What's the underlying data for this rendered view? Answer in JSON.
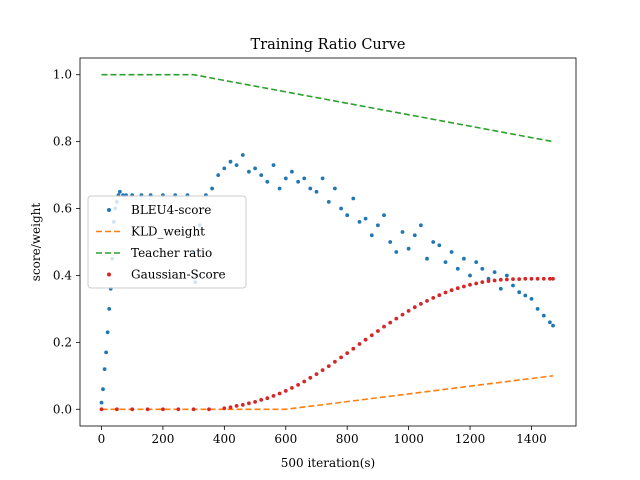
{
  "chart_data": {
    "type": "scatter",
    "title": "Training Ratio Curve",
    "xlabel": "500 iteration(s)",
    "ylabel": "score/weight",
    "xlim": [
      -70,
      1545
    ],
    "ylim": [
      -0.05,
      1.05
    ],
    "xticks": [
      0,
      200,
      400,
      600,
      800,
      1000,
      1200,
      1400
    ],
    "yticks": [
      0.0,
      0.2,
      0.4,
      0.6,
      0.8,
      1.0
    ],
    "xtick_labels": [
      "0",
      "200",
      "400",
      "600",
      "800",
      "1000",
      "1200",
      "1400"
    ],
    "ytick_labels": [
      "0.0",
      "0.2",
      "0.4",
      "0.6",
      "0.8",
      "1.0"
    ],
    "legend_position": "center-left",
    "grid": false,
    "series": [
      {
        "name": "BLEU4-score",
        "kind": "scatter",
        "color": "#1f77b4",
        "x": [
          0,
          5,
          10,
          15,
          20,
          25,
          30,
          35,
          40,
          45,
          50,
          55,
          60,
          70,
          80,
          100,
          130,
          160,
          200,
          240,
          280,
          300,
          305,
          310,
          320,
          340,
          360,
          380,
          400,
          420,
          440,
          460,
          480,
          500,
          520,
          540,
          560,
          580,
          600,
          620,
          640,
          660,
          680,
          700,
          720,
          740,
          760,
          780,
          800,
          820,
          840,
          860,
          880,
          900,
          920,
          940,
          960,
          980,
          1000,
          1020,
          1040,
          1060,
          1080,
          1100,
          1120,
          1140,
          1160,
          1180,
          1200,
          1220,
          1240,
          1260,
          1280,
          1300,
          1320,
          1340,
          1360,
          1380,
          1400,
          1420,
          1440,
          1460,
          1470
        ],
        "y": [
          0.02,
          0.06,
          0.12,
          0.17,
          0.23,
          0.3,
          0.36,
          0.45,
          0.56,
          0.6,
          0.62,
          0.64,
          0.65,
          0.64,
          0.64,
          0.64,
          0.64,
          0.64,
          0.64,
          0.64,
          0.64,
          0.47,
          0.38,
          0.4,
          0.55,
          0.64,
          0.66,
          0.7,
          0.72,
          0.74,
          0.73,
          0.76,
          0.71,
          0.72,
          0.7,
          0.68,
          0.73,
          0.66,
          0.69,
          0.71,
          0.68,
          0.69,
          0.66,
          0.65,
          0.69,
          0.62,
          0.66,
          0.6,
          0.58,
          0.63,
          0.56,
          0.57,
          0.52,
          0.55,
          0.58,
          0.5,
          0.47,
          0.53,
          0.48,
          0.52,
          0.55,
          0.45,
          0.5,
          0.49,
          0.44,
          0.47,
          0.42,
          0.45,
          0.4,
          0.44,
          0.42,
          0.39,
          0.41,
          0.36,
          0.4,
          0.37,
          0.35,
          0.34,
          0.33,
          0.3,
          0.28,
          0.26,
          0.25
        ]
      },
      {
        "name": "KLD_weight",
        "kind": "line",
        "style": "dashed",
        "color": "#ff7f0e",
        "x": [
          0,
          600,
          1470
        ],
        "y": [
          0.0,
          0.0,
          0.1
        ]
      },
      {
        "name": "Teacher ratio",
        "kind": "line",
        "style": "dashed",
        "color": "#2ca02c",
        "x": [
          0,
          300,
          1470
        ],
        "y": [
          1.0,
          1.0,
          0.8
        ]
      },
      {
        "name": "Gaussian-Score",
        "kind": "scatter",
        "color": "#d62728",
        "x": [
          0,
          50,
          100,
          150,
          200,
          250,
          300,
          350,
          400,
          420,
          440,
          460,
          480,
          500,
          520,
          540,
          560,
          580,
          600,
          620,
          640,
          660,
          680,
          700,
          720,
          740,
          760,
          780,
          800,
          820,
          840,
          860,
          880,
          900,
          920,
          940,
          960,
          980,
          1000,
          1020,
          1040,
          1060,
          1080,
          1100,
          1120,
          1140,
          1160,
          1180,
          1200,
          1220,
          1240,
          1260,
          1280,
          1300,
          1320,
          1340,
          1360,
          1380,
          1400,
          1420,
          1440,
          1460,
          1470
        ],
        "y": [
          0.0,
          0.0,
          0.0,
          0.0,
          0.0,
          0.0,
          0.0,
          0.0,
          0.003,
          0.006,
          0.01,
          0.013,
          0.018,
          0.022,
          0.028,
          0.033,
          0.04,
          0.047,
          0.055,
          0.064,
          0.073,
          0.083,
          0.094,
          0.105,
          0.117,
          0.129,
          0.142,
          0.155,
          0.168,
          0.181,
          0.195,
          0.208,
          0.221,
          0.234,
          0.247,
          0.259,
          0.271,
          0.283,
          0.294,
          0.305,
          0.315,
          0.324,
          0.333,
          0.341,
          0.349,
          0.356,
          0.362,
          0.367,
          0.372,
          0.376,
          0.38,
          0.383,
          0.385,
          0.387,
          0.388,
          0.389,
          0.389,
          0.39,
          0.39,
          0.39,
          0.39,
          0.39,
          0.39
        ]
      }
    ]
  }
}
